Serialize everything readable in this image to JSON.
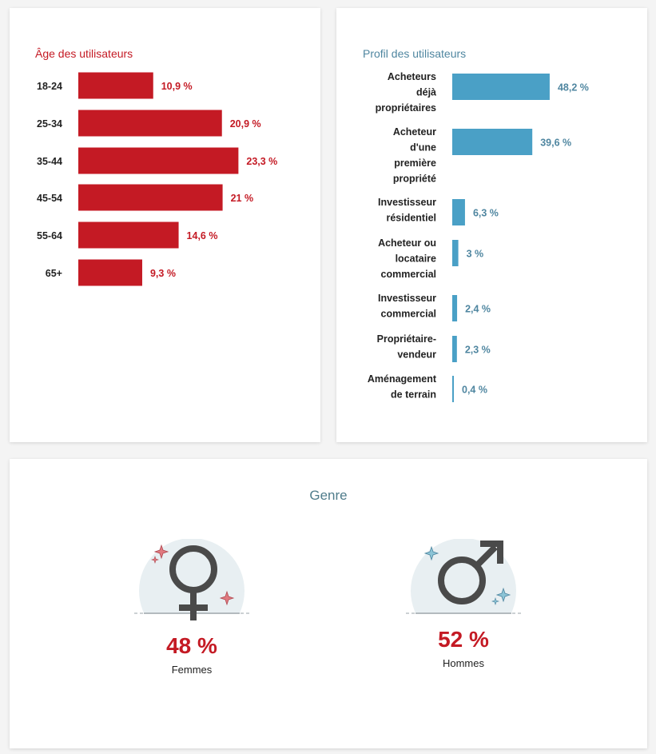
{
  "colors": {
    "age_bar": "#c41a24",
    "age_label": "#c41a24",
    "profile_bar": "#4aa0c6",
    "profile_label": "#4f86a0",
    "profile_title": "#4f86a0",
    "gender_title": "#4f7c8b",
    "pct": "#c41a24",
    "female_sparkle": "#e07a80",
    "male_sparkle": "#8cc4d6",
    "icon": "#4a4a4a",
    "icon_circle": "#e8eff2"
  },
  "age_chart": {
    "title": "Âge des utilisateurs"
  },
  "profile_chart": {
    "title": "Profil des utilisateurs"
  },
  "chart_data": [
    {
      "type": "bar",
      "orientation": "horizontal",
      "title": "Âge des utilisateurs",
      "categories": [
        "18-24",
        "25-34",
        "35-44",
        "45-54",
        "55-64",
        "65+"
      ],
      "values": [
        10.9,
        20.9,
        23.3,
        21,
        14.6,
        9.3
      ],
      "value_labels": [
        "10,9 %",
        "20,9 %",
        "23,3 %",
        "21 %",
        "14,6 %",
        "9,3 %"
      ],
      "unit": "%",
      "grid": false,
      "legend": "none"
    },
    {
      "type": "bar",
      "orientation": "horizontal",
      "title": "Profil des utilisateurs",
      "categories": [
        [
          "Acheteurs",
          "déjà",
          "propriétaires"
        ],
        [
          "Acheteur",
          "d'une",
          "première",
          "propriété"
        ],
        [
          "Investisseur",
          "résidentiel"
        ],
        [
          "Acheteur ou",
          "locataire",
          "commercial"
        ],
        [
          "Investisseur",
          "commercial"
        ],
        [
          "Propriétaire-",
          "vendeur"
        ],
        [
          "Aménagement",
          "de terrain"
        ]
      ],
      "values": [
        48.2,
        39.6,
        6.3,
        3,
        2.4,
        2.3,
        0.4
      ],
      "value_labels": [
        "48,2 %",
        "39,6 %",
        "6,3 %",
        "3 %",
        "2,4 %",
        "2,3 %",
        "0,4 %"
      ],
      "unit": "%",
      "grid": false,
      "legend": "none"
    }
  ],
  "gender": {
    "title": "Genre",
    "female": {
      "pct": "48 %",
      "label": "Femmes",
      "icon": "female-symbol-icon"
    },
    "male": {
      "pct": "52 %",
      "label": "Hommes",
      "icon": "male-symbol-icon"
    }
  }
}
